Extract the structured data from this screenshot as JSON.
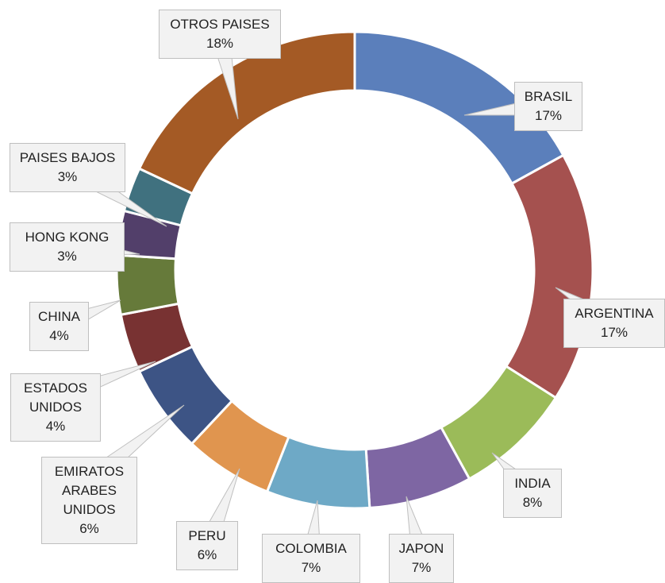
{
  "chart_data": {
    "type": "donut",
    "categories": [
      "BRASIL",
      "ARGENTINA",
      "INDIA",
      "JAPON",
      "COLOMBIA",
      "PERU",
      "EMIRATOS ARABES UNIDOS",
      "ESTADOS UNIDOS",
      "CHINA",
      "HONG KONG",
      "PAISES BAJOS",
      "OTROS PAISES"
    ],
    "values": [
      17,
      17,
      8,
      7,
      7,
      6,
      6,
      4,
      4,
      3,
      3,
      18
    ],
    "value_labels": [
      "17%",
      "17%",
      "8%",
      "7%",
      "7%",
      "6%",
      "6%",
      "4%",
      "4%",
      "3%",
      "3%",
      "18%"
    ],
    "colors": [
      "#5b7fbb",
      "#a5514f",
      "#9bbb59",
      "#7e66a3",
      "#6ea9c6",
      "#e0954f",
      "#3d5485",
      "#783232",
      "#667a3a",
      "#523f6a",
      "#40717f",
      "#a45a25"
    ]
  }
}
